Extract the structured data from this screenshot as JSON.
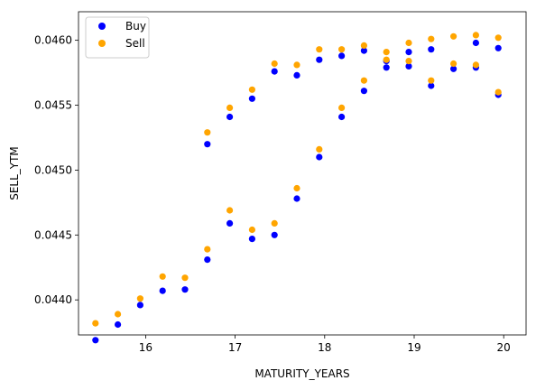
{
  "chart_data": {
    "type": "scatter",
    "xlabel": "MATURITY_YEARS",
    "ylabel": "SELL_YTM",
    "xlim": [
      15.25,
      20.25
    ],
    "ylim": [
      0.04373,
      0.04622
    ],
    "xticks": [
      16,
      17,
      18,
      19,
      20
    ],
    "yticks": [
      0.044,
      0.0445,
      0.045,
      0.0455,
      0.046
    ],
    "xtick_labels": [
      "16",
      "17",
      "18",
      "19",
      "20"
    ],
    "ytick_labels": [
      "0.0440",
      "0.0445",
      "0.0450",
      "0.0455",
      "0.0460"
    ],
    "grid": false,
    "legend_position": "top-left",
    "series": [
      {
        "name": "Buy",
        "color": "#0000ff",
        "x": [
          15.44,
          15.69,
          15.94,
          16.19,
          16.44,
          16.69,
          16.69,
          16.94,
          16.94,
          17.19,
          17.19,
          17.44,
          17.44,
          17.69,
          17.69,
          17.94,
          17.94,
          18.19,
          18.19,
          18.44,
          18.44,
          18.69,
          18.69,
          18.94,
          18.94,
          19.19,
          19.19,
          19.44,
          19.69,
          19.69,
          19.94,
          19.94
        ],
        "y": [
          0.04369,
          0.04381,
          0.04396,
          0.04407,
          0.04408,
          0.04431,
          0.0452,
          0.04459,
          0.04541,
          0.04447,
          0.04555,
          0.0445,
          0.04576,
          0.04478,
          0.04573,
          0.0451,
          0.04585,
          0.04541,
          0.04588,
          0.04561,
          0.04592,
          0.04579,
          0.04584,
          0.0458,
          0.04591,
          0.04565,
          0.04593,
          0.04578,
          0.04579,
          0.04598,
          0.04558,
          0.04594
        ]
      },
      {
        "name": "Sell",
        "color": "#ffa500",
        "x": [
          15.44,
          15.69,
          15.94,
          16.19,
          16.44,
          16.69,
          16.69,
          16.94,
          16.94,
          17.19,
          17.19,
          17.44,
          17.44,
          17.69,
          17.69,
          17.94,
          17.94,
          18.19,
          18.19,
          18.44,
          18.44,
          18.69,
          18.69,
          18.94,
          18.94,
          19.19,
          19.19,
          19.44,
          19.44,
          19.69,
          19.69,
          19.94,
          19.94
        ],
        "y": [
          0.04382,
          0.04389,
          0.04401,
          0.04418,
          0.04417,
          0.04439,
          0.04529,
          0.04469,
          0.04548,
          0.04454,
          0.04562,
          0.04459,
          0.04582,
          0.04486,
          0.04581,
          0.04516,
          0.04593,
          0.04548,
          0.04593,
          0.04569,
          0.04596,
          0.04585,
          0.04591,
          0.04584,
          0.04598,
          0.04569,
          0.04601,
          0.04582,
          0.04603,
          0.04581,
          0.04604,
          0.0456,
          0.04602
        ]
      }
    ]
  }
}
